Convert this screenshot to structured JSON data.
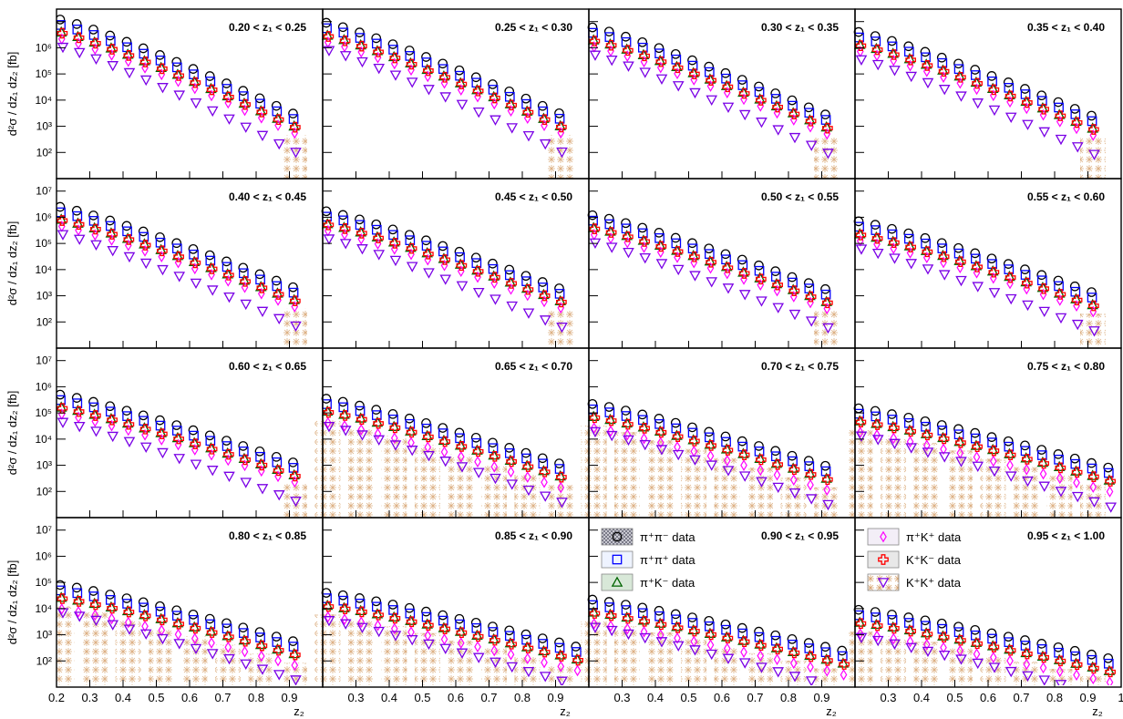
{
  "colors": {
    "pipi_minus": "#000000",
    "pipi_plus": "#0000ff",
    "piK_minus": "#006400",
    "piK_plus": "#ff00ff",
    "KK_minus": "#ff0000",
    "KK_plus": "#7a00e6",
    "band_pi": "#9090a0",
    "band_K": "#d2a070"
  },
  "axis_labels": {
    "y_text": "d²σ / dz₁ dz₂ [fb]",
    "x_text": "z₂"
  },
  "y_tick_labels": [
    "10²",
    "10³",
    "10⁴",
    "10⁵",
    "10⁶",
    "10⁷"
  ],
  "x_tick_labels": [
    "0.2",
    "0.3",
    "0.4",
    "0.5",
    "0.6",
    "0.7",
    "0.8",
    "0.9",
    "1"
  ],
  "legend": [
    [
      "π⁺π⁻ data",
      "π⁺π⁺ data",
      "π⁺K⁻ data"
    ],
    [
      "π⁺K⁺ data",
      "K⁺K⁻ data",
      "K⁺K⁺ data"
    ]
  ],
  "chart_data": {
    "type": "scatter",
    "layout": "4x4 grid of panels",
    "x_axis": "z2",
    "xlim": [
      0.2,
      1.0
    ],
    "ylim": [
      10,
      30000000
    ],
    "y_scale": "log",
    "x_ticks": [
      0.2,
      0.3,
      0.4,
      0.5,
      0.6,
      0.7,
      0.8,
      0.9,
      1.0
    ],
    "y_ticks": [
      100,
      1000,
      10000,
      100000,
      1000000,
      10000000
    ],
    "series_names": [
      "π⁺π⁻ data",
      "π⁺π⁺ data",
      "π⁺K⁻ data",
      "π⁺K⁺ data",
      "K⁺K⁻ data",
      "K⁺K⁺ data"
    ],
    "panels": [
      {
        "label": "0.20 < z₁ < 0.25",
        "max": 12000000.0,
        "end": 0.95
      },
      {
        "label": "0.25 < z₁ < 0.30",
        "max": 9000000.0,
        "end": 0.95
      },
      {
        "label": "0.30 < z₁ < 0.35",
        "max": 6000000.0,
        "end": 0.95
      },
      {
        "label": "0.35 < z₁ < 0.40",
        "max": 4000000.0,
        "end": 0.95
      },
      {
        "label": "0.40 < z₁ < 0.45",
        "max": 2500000.0,
        "end": 0.95
      },
      {
        "label": "0.45 < z₁ < 0.50",
        "max": 1700000.0,
        "end": 0.95
      },
      {
        "label": "0.50 < z₁ < 0.55",
        "max": 1200000.0,
        "end": 0.95
      },
      {
        "label": "0.55 < z₁ < 0.60",
        "max": 700000.0,
        "end": 0.95
      },
      {
        "label": "0.60 < z₁ < 0.65",
        "max": 500000.0,
        "end": 0.95
      },
      {
        "label": "0.65 < z₁ < 0.70",
        "max": 350000.0,
        "end": 0.95
      },
      {
        "label": "0.70 < z₁ < 0.75",
        "max": 220000.0,
        "end": 0.95
      },
      {
        "label": "0.75 < z₁ < 0.80",
        "max": 150000.0,
        "end": 1.0
      },
      {
        "label": "0.80 < z₁ < 0.85",
        "max": 80000.0,
        "end": 0.95
      },
      {
        "label": "0.85 < z₁ < 0.90",
        "max": 40000.0,
        "end": 1.0
      },
      {
        "label": "0.90 < z₁ < 0.95",
        "max": 22000.0,
        "end": 1.0
      },
      {
        "label": "0.95 < z₁ < 1.00",
        "max": 9000.0,
        "end": 1.0
      }
    ]
  }
}
